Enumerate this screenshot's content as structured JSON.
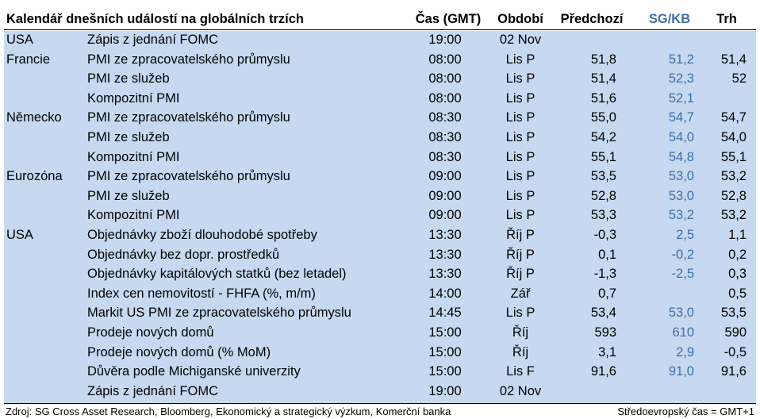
{
  "header": {
    "title": "Kalendář dnešních událostí na globálních trzích",
    "time": "Čas (GMT)",
    "period": "Období",
    "previous": "Předchozí",
    "sg": "SG/KB",
    "market": "Trh"
  },
  "rows": [
    {
      "region": "USA",
      "event": "Zápis z jednání FOMC",
      "time": "19:00",
      "period": "02 Nov",
      "prev": "",
      "sg": "",
      "mkt": ""
    },
    {
      "region": "Francie",
      "event": "PMI ze zpracovatelského průmyslu",
      "time": "08:00",
      "period": "Lis P",
      "prev": "51,8",
      "sg": "51,2",
      "mkt": "51,4"
    },
    {
      "region": "",
      "event": "PMI ze služeb",
      "time": "08:00",
      "period": "Lis P",
      "prev": "51,4",
      "sg": "52,3",
      "mkt": "52"
    },
    {
      "region": "",
      "event": "Kompozitní PMI",
      "time": "08:00",
      "period": "Lis P",
      "prev": "51,6",
      "sg": "52,1",
      "mkt": ""
    },
    {
      "region": "Německo",
      "event": "PMI ze zpracovatelského průmyslu",
      "time": "08:30",
      "period": "Lis P",
      "prev": "55,0",
      "sg": "54,7",
      "mkt": "54,7"
    },
    {
      "region": "",
      "event": "PMI ze služeb",
      "time": "08:30",
      "period": "Lis P",
      "prev": "54,2",
      "sg": "54,0",
      "mkt": "54,0"
    },
    {
      "region": "",
      "event": "Kompozitní PMI",
      "time": "08:30",
      "period": "Lis P",
      "prev": "55,1",
      "sg": "54,8",
      "mkt": "55,1"
    },
    {
      "region": "Eurozóna",
      "event": "PMI ze zpracovatelského průmyslu",
      "time": "09:00",
      "period": "Lis P",
      "prev": "53,5",
      "sg": "53,0",
      "mkt": "53,2"
    },
    {
      "region": "",
      "event": "PMI ze služeb",
      "time": "09:00",
      "period": "Lis P",
      "prev": "52,8",
      "sg": "53,0",
      "mkt": "52,8"
    },
    {
      "region": "",
      "event": "Kompozitní PMI",
      "time": "09:00",
      "period": "Lis P",
      "prev": "53,3",
      "sg": "53,2",
      "mkt": "53,2"
    },
    {
      "region": "USA",
      "event": "Objednávky zboží dlouhodobé spotřeby",
      "time": "13:30",
      "period": "Říj P",
      "prev": "-0,3",
      "sg": "2,5",
      "mkt": "1,1"
    },
    {
      "region": "",
      "event": "Objednávky bez dopr. prostředků",
      "time": "13:30",
      "period": "Říj P",
      "prev": "0,1",
      "sg": "-0,2",
      "mkt": "0,2"
    },
    {
      "region": "",
      "event": "Objednávky kapitálových statků (bez letadel)",
      "time": "13:30",
      "period": "Říj P",
      "prev": "-1,3",
      "sg": "-2,5",
      "mkt": "0,3"
    },
    {
      "region": "",
      "event": "Index cen nemovitostí - FHFA (%, m/m)",
      "time": "14:00",
      "period": "Zář",
      "prev": "0,7",
      "sg": "",
      "mkt": "0,5"
    },
    {
      "region": "",
      "event": "Markit US PMI ze zpracovatelského průmyslu",
      "time": "14:45",
      "period": "Lis P",
      "prev": "53,4",
      "sg": "53,0",
      "mkt": "53,5"
    },
    {
      "region": "",
      "event": "Prodeje nových domů",
      "time": "15:00",
      "period": "Říj",
      "prev": "593",
      "sg": "610",
      "mkt": "590"
    },
    {
      "region": "",
      "event": "Prodeje nových domů (% MoM)",
      "time": "15:00",
      "period": "Říj",
      "prev": "3,1",
      "sg": "2,9",
      "mkt": "-0,5"
    },
    {
      "region": "",
      "event": "Důvěra podle Michiganské univerzity",
      "time": "15:00",
      "period": "Lis F",
      "prev": "91,6",
      "sg": "91,0",
      "mkt": "91,6"
    },
    {
      "region": "",
      "event": "Zápis z jednání FOMC",
      "time": "19:00",
      "period": "02 Nov",
      "prev": "",
      "sg": "",
      "mkt": ""
    }
  ],
  "footer": {
    "source": "Zdroj: SG Cross Asset Research, Bloomberg, Ekonomický a strategický výzkum, Komerční banka",
    "note": "Středoevropský čas = GMT+1"
  }
}
